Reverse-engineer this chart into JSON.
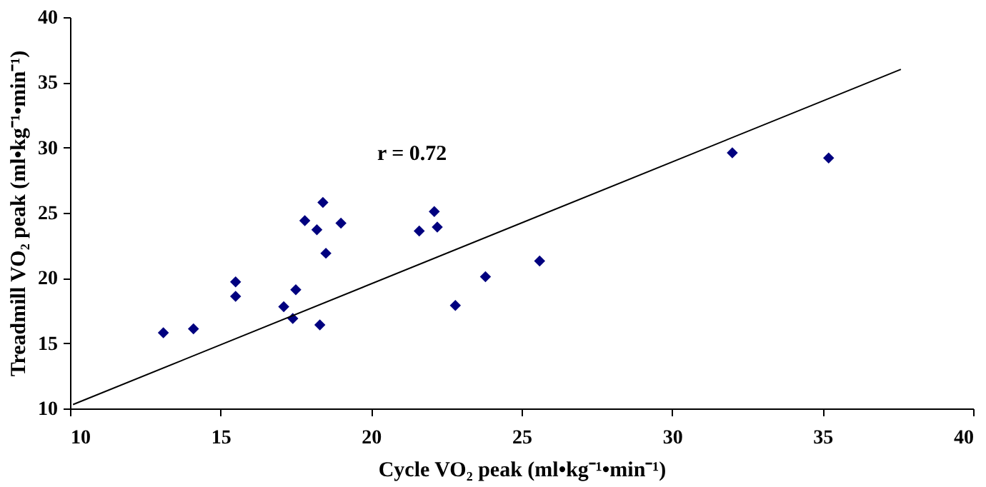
{
  "chart_data": {
    "type": "scatter",
    "xlabel": "Cycle VO₂ peak (ml•kg⁻¹•min⁻¹)",
    "ylabel": "Treadmill VO₂ peak (ml•kg⁻¹•min⁻¹)",
    "annotations": [
      "r = 0.72"
    ],
    "xlim": [
      10,
      40
    ],
    "xticks": [
      10,
      15,
      20,
      25,
      30,
      35,
      40
    ],
    "ylim": [
      10,
      40
    ],
    "yticks": [
      10,
      15,
      20,
      25,
      30,
      35,
      40
    ],
    "grid": false,
    "series": [
      {
        "marker": "diamond",
        "color": "#00007f",
        "x": [
          13.1,
          14.1,
          15.5,
          15.5,
          17.1,
          17.4,
          17.5,
          17.8,
          18.2,
          18.4,
          18.5,
          18.3,
          19.0,
          21.6,
          22.1,
          22.2,
          22.8,
          23.8,
          25.6,
          32.0,
          35.2
        ],
        "values": [
          15.8,
          16.1,
          19.7,
          18.6,
          17.8,
          16.9,
          19.1,
          24.4,
          23.7,
          25.8,
          21.9,
          16.4,
          24.2,
          23.6,
          25.1,
          23.9,
          17.9,
          20.1,
          21.3,
          29.6,
          29.2
        ]
      },
      {
        "type": "line",
        "color": "#000000",
        "x": [
          10.1,
          37.6
        ],
        "values": [
          10.3,
          36.0
        ]
      }
    ]
  }
}
